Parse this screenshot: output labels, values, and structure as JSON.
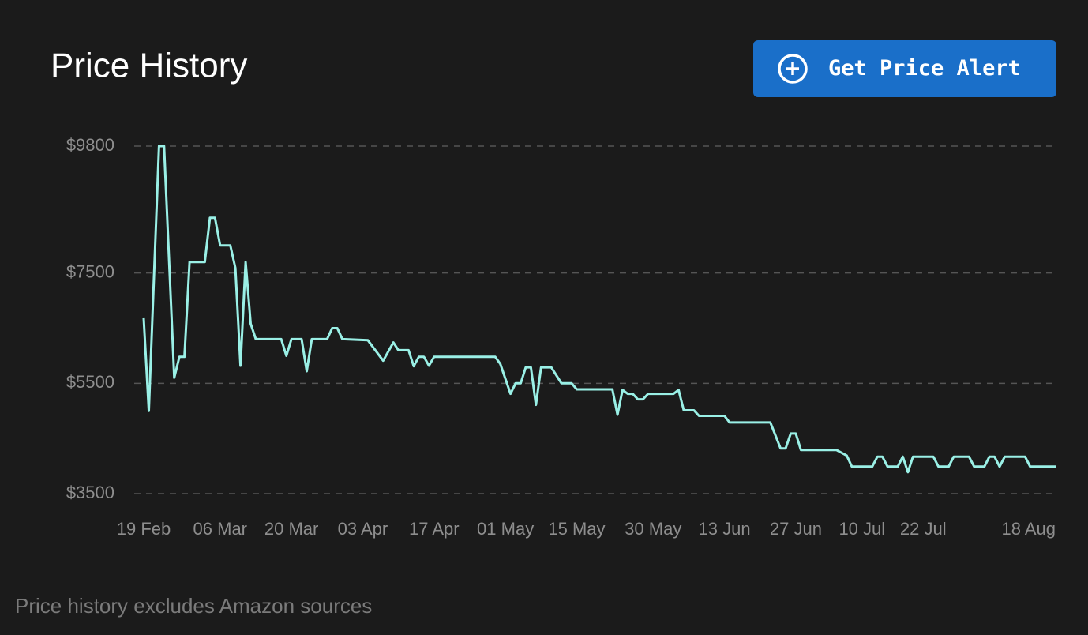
{
  "chart_data": {
    "type": "line",
    "title": "Price History",
    "x": [
      "19 Feb",
      "20 Feb",
      "22 Feb",
      "23 Feb",
      "25 Feb",
      "26 Feb",
      "27 Feb",
      "28 Feb",
      "03 Mar",
      "04 Mar",
      "05 Mar",
      "06 Mar",
      "08 Mar",
      "09 Mar",
      "10 Mar",
      "11 Mar",
      "12 Mar",
      "13 Mar",
      "18 Mar",
      "19 Mar",
      "20 Mar",
      "22 Mar",
      "23 Mar",
      "24 Mar",
      "27 Mar",
      "28 Mar",
      "29 Mar",
      "30 Mar",
      "04 Apr",
      "07 Apr",
      "09 Apr",
      "10 Apr",
      "12 Apr",
      "13 Apr",
      "14 Apr",
      "15 Apr",
      "16 Apr",
      "17 Apr",
      "29 Apr",
      "30 Apr",
      "02 May",
      "03 May",
      "04 May",
      "05 May",
      "06 May",
      "07 May",
      "08 May",
      "10 May",
      "12 May",
      "14 May",
      "15 May",
      "22 May",
      "23 May",
      "24 May",
      "25 May",
      "26 May",
      "27 May",
      "28 May",
      "29 May",
      "03 Jun",
      "04 Jun",
      "05 Jun",
      "07 Jun",
      "08 Jun",
      "13 Jun",
      "14 Jun",
      "22 Jun",
      "24 Jun",
      "25 Jun",
      "26 Jun",
      "27 Jun",
      "28 Jun",
      "05 Jul",
      "07 Jul",
      "08 Jul",
      "12 Jul",
      "13 Jul",
      "14 Jul",
      "15 Jul",
      "17 Jul",
      "18 Jul",
      "19 Jul",
      "20 Jul",
      "24 Jul",
      "25 Jul",
      "27 Jul",
      "28 Jul",
      "31 Jul",
      "01 Aug",
      "03 Aug",
      "04 Aug",
      "05 Aug",
      "06 Aug",
      "07 Aug",
      "11 Aug",
      "12 Aug",
      "17 Aug"
    ],
    "values": [
      6680,
      5000,
      9800,
      9800,
      5600,
      5980,
      5980,
      7700,
      7700,
      8500,
      8500,
      8000,
      8000,
      7590,
      5820,
      7700,
      6580,
      6300,
      6300,
      6000,
      6300,
      6300,
      5720,
      6300,
      6300,
      6500,
      6500,
      6300,
      6280,
      5910,
      6240,
      6100,
      6100,
      5810,
      5980,
      5980,
      5820,
      5980,
      5980,
      5850,
      5310,
      5500,
      5500,
      5790,
      5790,
      5110,
      5790,
      5790,
      5500,
      5500,
      5390,
      5390,
      4930,
      5380,
      5310,
      5310,
      5210,
      5210,
      5310,
      5310,
      5380,
      5010,
      5010,
      4910,
      4910,
      4790,
      4790,
      4320,
      4320,
      4590,
      4590,
      4290,
      4290,
      4190,
      3990,
      3990,
      4170,
      4170,
      3990,
      3990,
      4170,
      3890,
      4170,
      4170,
      3990,
      3990,
      4170,
      4170,
      3990,
      3990,
      4170,
      4170,
      3990,
      4170,
      4170,
      3990,
      3990
    ],
    "color": "#9af0e6",
    "xlim": [
      "19 Feb",
      "17 Aug"
    ],
    "xticks": [
      "19 Feb",
      "06 Mar",
      "20 Mar",
      "03 Apr",
      "17 Apr",
      "01 May",
      "15 May",
      "30 May",
      "13 Jun",
      "27 Jun",
      "10 Jul",
      "22 Jul",
      "18 Aug"
    ],
    "ylim": [
      3500,
      9800
    ],
    "yticks": [
      {
        "value": 3500,
        "label": "$3500"
      },
      {
        "value": 5500,
        "label": "$5500"
      },
      {
        "value": 7500,
        "label": "$7500"
      },
      {
        "value": 9800,
        "label": "$9800"
      }
    ],
    "grid": true
  },
  "button": {
    "label": "Get Price Alert"
  },
  "footnote": "Price history excludes Amazon sources"
}
